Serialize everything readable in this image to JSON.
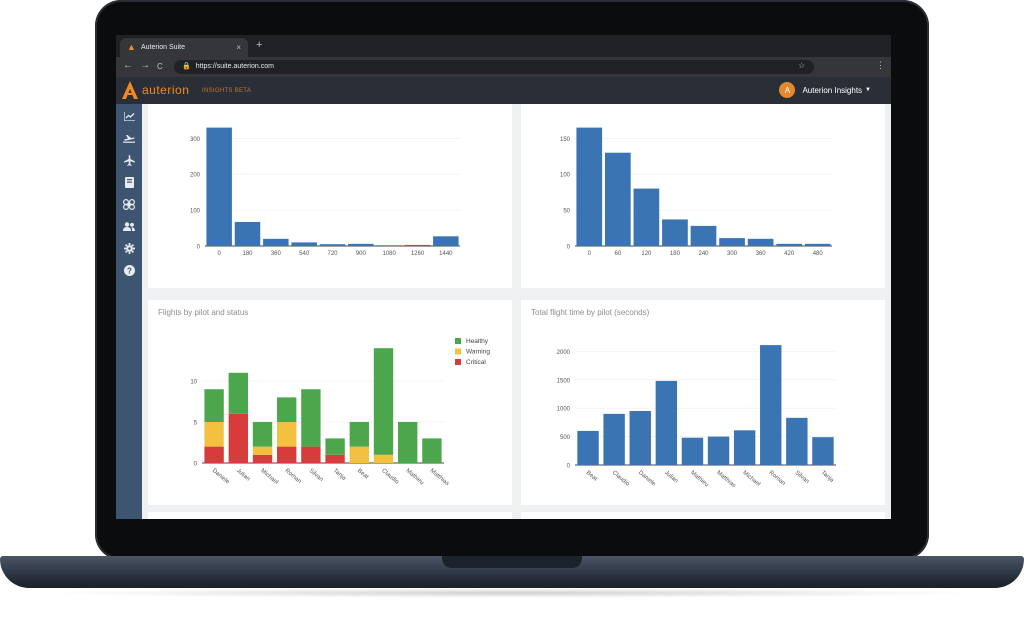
{
  "browser": {
    "tab_title": "Auterion Suite",
    "tab_close": "×",
    "new_tab": "+",
    "url": "https://suite.auterion.com",
    "back": "←",
    "forward": "→",
    "reload": "C",
    "star": "☆",
    "menu": "⋮"
  },
  "app": {
    "brand": "auterion",
    "brand_sub": "INSIGHTS BETA",
    "user_initial": "A",
    "user_menu": "Auterion Insights",
    "accent": "#f08a24",
    "sidebar_color": "#3d5570"
  },
  "sidebar": {
    "items": [
      {
        "icon": "line-chart-icon",
        "glyph": "📈"
      },
      {
        "icon": "flight-log-icon",
        "glyph": "⇄"
      },
      {
        "icon": "plane-icon",
        "glyph": "✈"
      },
      {
        "icon": "book-icon",
        "glyph": "▤"
      },
      {
        "icon": "drone-icon",
        "glyph": "✣"
      },
      {
        "icon": "users-icon",
        "glyph": "👥"
      },
      {
        "icon": "gear-icon",
        "glyph": "⚙"
      },
      {
        "icon": "help-icon",
        "glyph": "?"
      }
    ]
  },
  "chart_data": [
    {
      "type": "bar",
      "title": "",
      "categories": [
        "0",
        "180",
        "360",
        "540",
        "720",
        "900",
        "1080",
        "1260",
        "1440"
      ],
      "values": [
        330,
        67,
        20,
        10,
        5,
        6,
        2,
        3,
        27
      ],
      "yticks": [
        0,
        100,
        200,
        300
      ],
      "ylim": [
        0,
        340
      ],
      "color": "#3a74b3"
    },
    {
      "type": "bar",
      "title": "",
      "categories": [
        "0",
        "60",
        "120",
        "180",
        "240",
        "300",
        "360",
        "420",
        "480"
      ],
      "values": [
        165,
        130,
        80,
        37,
        28,
        11,
        10,
        3,
        3
      ],
      "yticks": [
        0,
        50,
        100,
        150
      ],
      "ylim": [
        0,
        170
      ],
      "color": "#3a74b3"
    },
    {
      "type": "bar",
      "title": "Flights by pilot and status",
      "categories": [
        "Daniele",
        "Julian",
        "Michael",
        "Roman",
        "Silvan",
        "Tanja",
        "Beat",
        "Claudio",
        "Mathieu",
        "Matthias"
      ],
      "series": [
        {
          "name": "Critical",
          "color": "#d63c3c",
          "values": [
            2,
            6,
            1,
            2,
            2,
            1,
            0,
            0,
            0,
            0
          ]
        },
        {
          "name": "Warning",
          "color": "#f4c040",
          "values": [
            3,
            0,
            1,
            3,
            0,
            0,
            2,
            1,
            0,
            0
          ]
        },
        {
          "name": "Healthy",
          "color": "#4ca64c",
          "values": [
            4,
            5,
            3,
            3,
            7,
            2,
            3,
            13,
            5,
            3
          ]
        }
      ],
      "legend_order": [
        "Healthy",
        "Warning",
        "Critical"
      ],
      "legend": "top-right",
      "yticks": [
        0,
        5,
        10
      ],
      "ylim": [
        0,
        15
      ]
    },
    {
      "type": "bar",
      "title": "Total flight time by pilot (seconds)",
      "categories": [
        "Beat",
        "Claudio",
        "Daniele",
        "Julian",
        "Mathieu",
        "Matthias",
        "Michael",
        "Roman",
        "Silvan",
        "Tanja"
      ],
      "values": [
        600,
        900,
        950,
        1480,
        480,
        500,
        610,
        2110,
        830,
        490
      ],
      "yticks": [
        0,
        500,
        1000,
        1500,
        2000
      ],
      "ylim": [
        0,
        2200
      ],
      "color": "#3a74b3"
    }
  ]
}
